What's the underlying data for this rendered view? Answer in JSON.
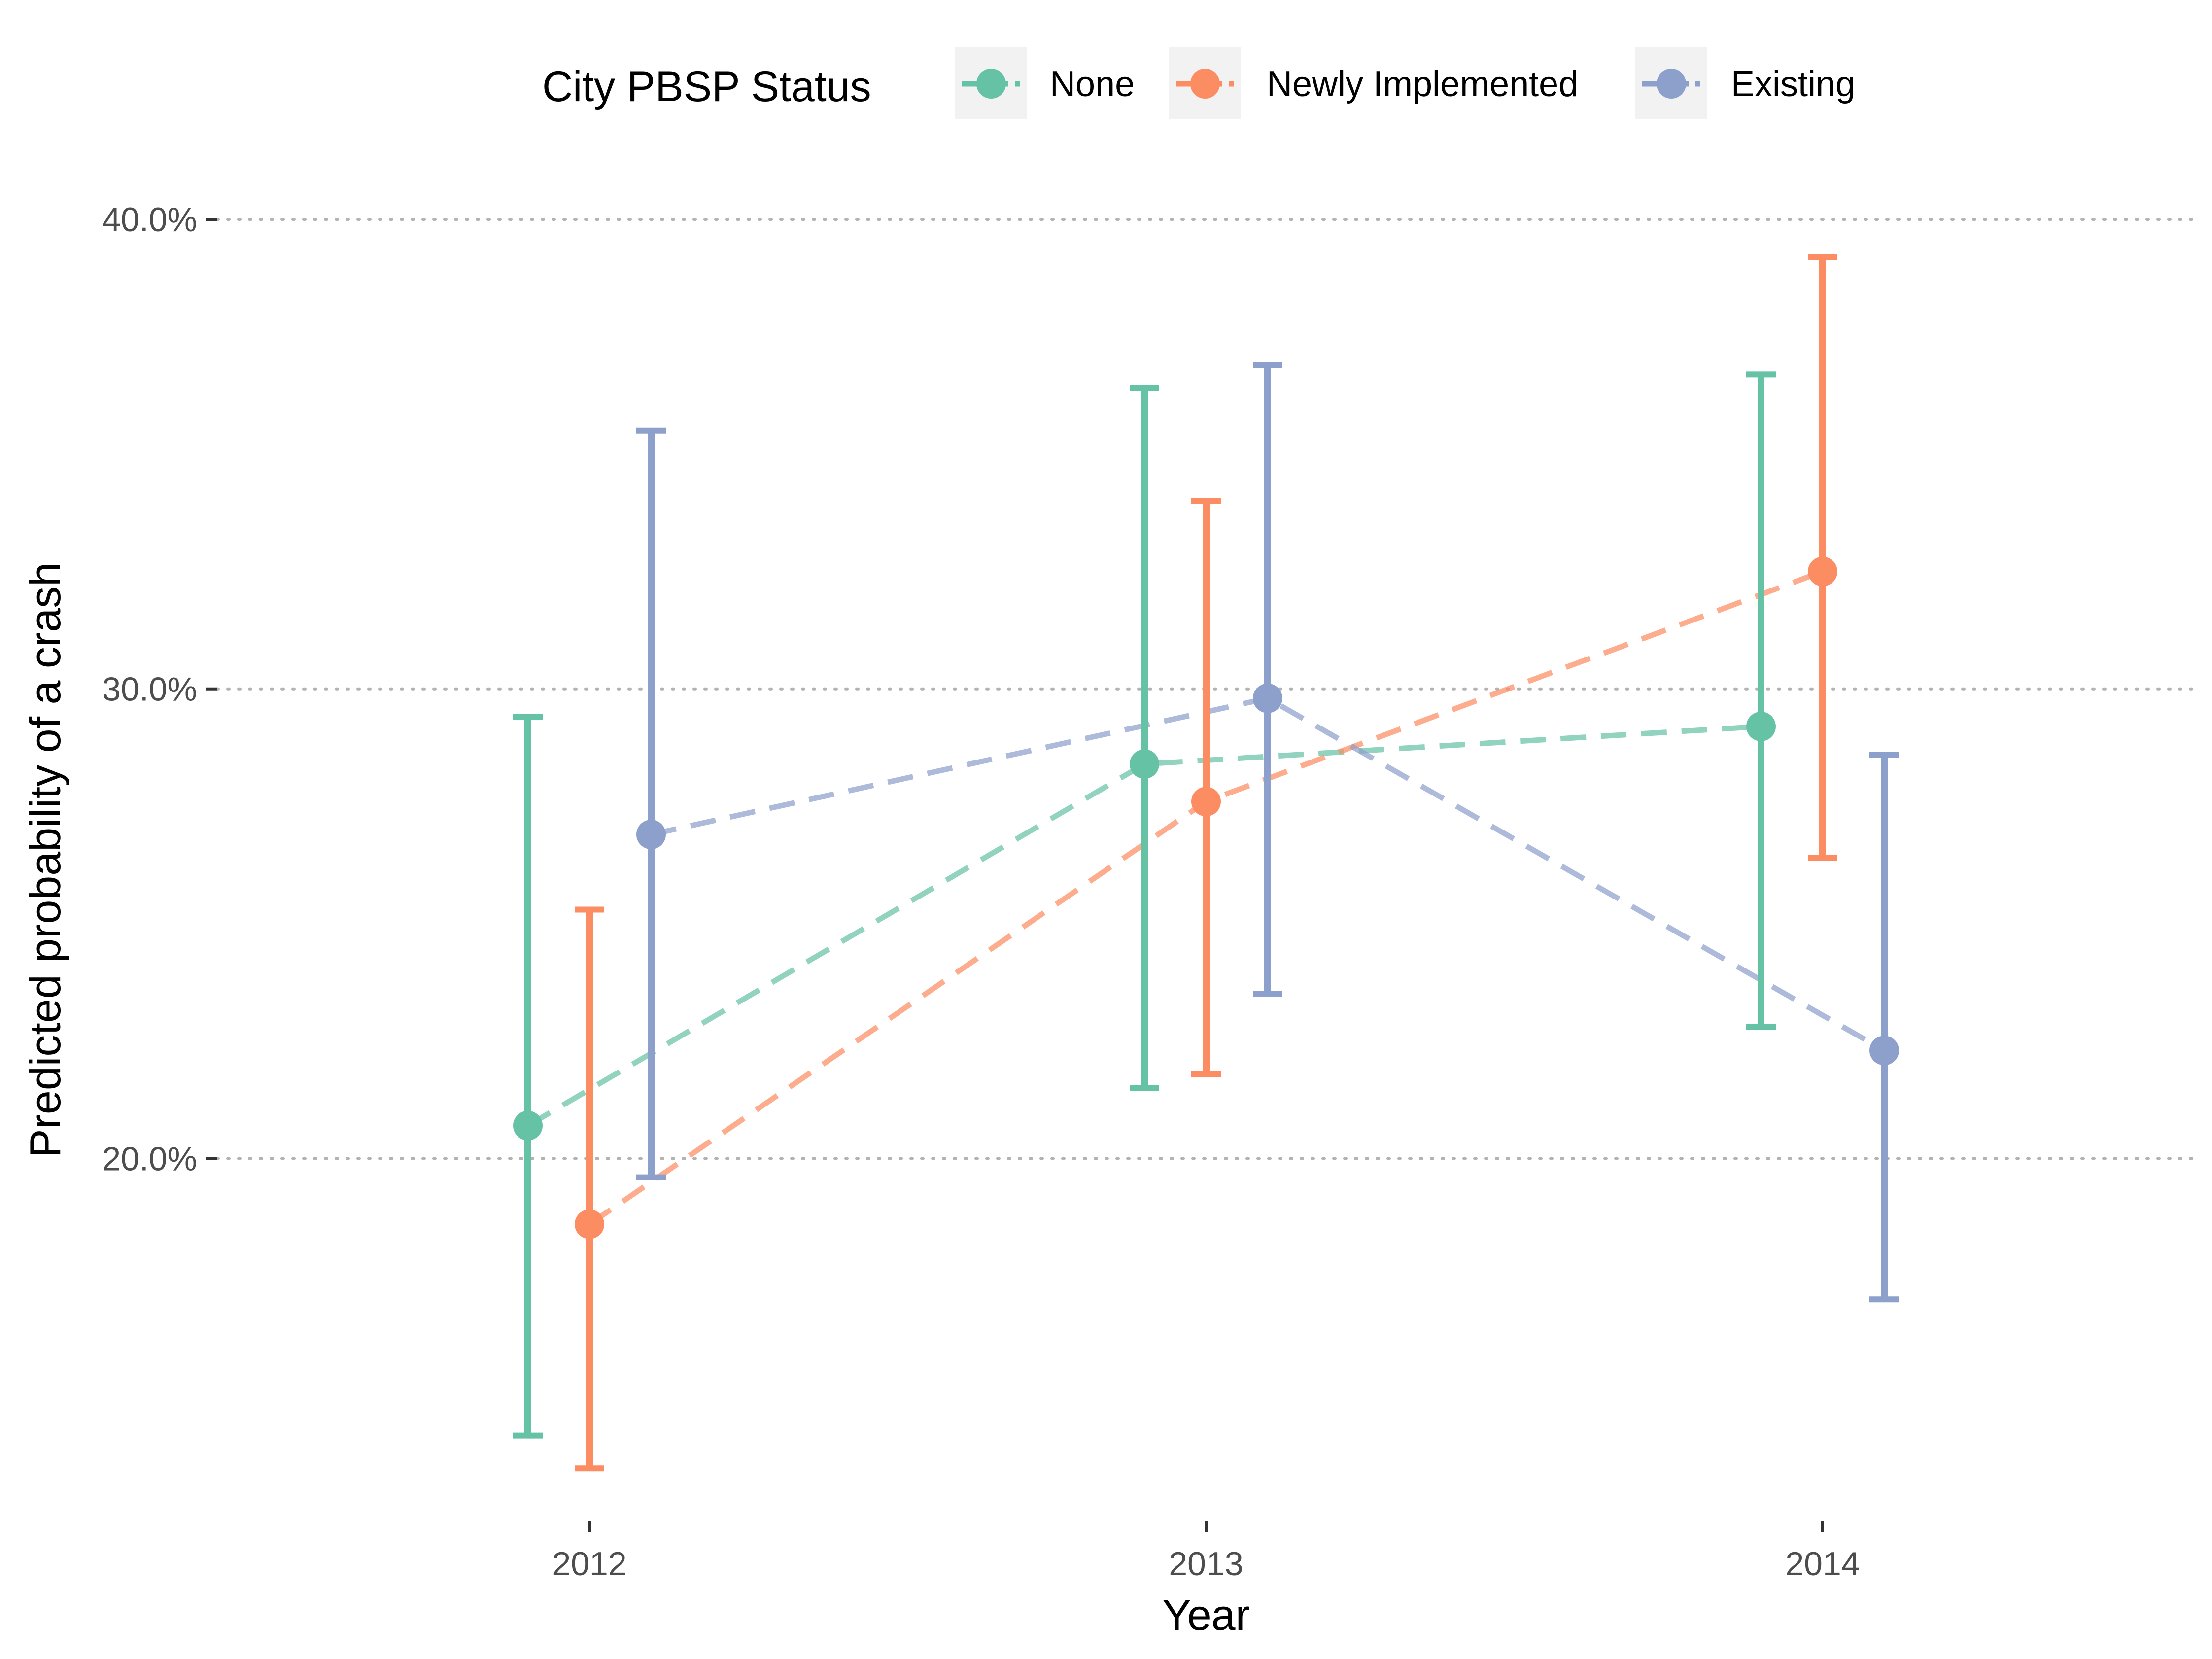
{
  "chart_data": {
    "type": "line",
    "xlabel": "Year",
    "ylabel": "Predicted probability of a crash",
    "categories": [
      "2012",
      "2013",
      "2014"
    ],
    "ylim": [
      0.125,
      0.4
    ],
    "yticks": [
      0.2,
      0.3,
      0.4
    ],
    "ytick_labels": [
      "20.0%",
      "30.0%",
      "40.0%"
    ],
    "grid": "horizontal dotted",
    "legend": {
      "title": "City PBSP Status",
      "position": "top"
    },
    "series": [
      {
        "name": "None",
        "color": "#66c2a5",
        "values": [
          0.207,
          0.284,
          0.292
        ],
        "lower": [
          0.141,
          0.215,
          0.228
        ],
        "upper": [
          0.294,
          0.364,
          0.367
        ]
      },
      {
        "name": "Newly Implemented",
        "color": "#fc8d62",
        "values": [
          0.186,
          0.276,
          0.325
        ],
        "lower": [
          0.134,
          0.218,
          0.264
        ],
        "upper": [
          0.253,
          0.34,
          0.392
        ]
      },
      {
        "name": "Existing",
        "color": "#8da0cb",
        "values": [
          0.269,
          0.298,
          0.223
        ],
        "lower": [
          0.196,
          0.235,
          0.17
        ],
        "upper": [
          0.355,
          0.369,
          0.286
        ]
      }
    ]
  }
}
